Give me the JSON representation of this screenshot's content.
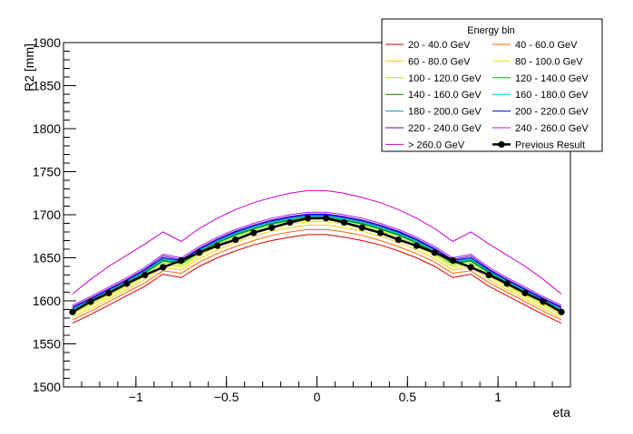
{
  "chart_data": {
    "type": "line",
    "title": "",
    "xlabel": "eta",
    "ylabel": "R2 [mm]",
    "xlim": [
      -1.4,
      1.4
    ],
    "ylim": [
      1500,
      1900
    ],
    "x_ticks": [
      -1,
      -0.5,
      0,
      0.5,
      1
    ],
    "x_tick_labels": [
      "−1",
      "−0.5",
      "0",
      "0.5",
      "1"
    ],
    "y_ticks": [
      1500,
      1550,
      1600,
      1650,
      1700,
      1750,
      1800,
      1850,
      1900
    ],
    "y_tick_labels": [
      "1500",
      "1550",
      "1600",
      "1650",
      "1700",
      "1750",
      "1800",
      "1850",
      "1900"
    ],
    "legend": {
      "title": "Energy bin",
      "position": "top-right"
    },
    "x": [
      -1.35,
      -1.25,
      -1.15,
      -1.05,
      -0.95,
      -0.85,
      -0.75,
      -0.65,
      -0.55,
      -0.45,
      -0.35,
      -0.25,
      -0.15,
      -0.05,
      0.05,
      0.15,
      0.25,
      0.35,
      0.45,
      0.55,
      0.65,
      0.75,
      0.85,
      0.95,
      1.05,
      1.15,
      1.25,
      1.35
    ],
    "series": [
      {
        "name": "20 - 40.0 GeV",
        "color": "#d40000",
        "values": [
          1574,
          1584,
          1595,
          1606,
          1617,
          1631,
          1627,
          1640,
          1650,
          1658,
          1665,
          1670,
          1674,
          1677,
          1677,
          1674,
          1670,
          1665,
          1658,
          1650,
          1640,
          1627,
          1631,
          1617,
          1606,
          1595,
          1584,
          1574
        ]
      },
      {
        "name": "40 - 60.0 GeV",
        "color": "#ff6600",
        "values": [
          1578,
          1588,
          1599,
          1610,
          1621,
          1635,
          1632,
          1645,
          1655,
          1663,
          1670,
          1676,
          1680,
          1683,
          1683,
          1680,
          1676,
          1670,
          1663,
          1655,
          1645,
          1632,
          1635,
          1621,
          1610,
          1599,
          1588,
          1578
        ]
      },
      {
        "name": "60 - 80.0 GeV",
        "color": "#ffcc00",
        "values": [
          1581,
          1591,
          1602,
          1613,
          1625,
          1639,
          1636,
          1649,
          1659,
          1668,
          1675,
          1681,
          1685,
          1688,
          1688,
          1685,
          1681,
          1675,
          1668,
          1659,
          1649,
          1636,
          1639,
          1625,
          1613,
          1602,
          1591,
          1581
        ]
      },
      {
        "name": "80 - 100.0 GeV",
        "color": "#e6e600",
        "values": [
          1584,
          1594,
          1605,
          1616,
          1628,
          1642,
          1639,
          1652,
          1663,
          1671,
          1679,
          1685,
          1689,
          1692,
          1692,
          1689,
          1685,
          1679,
          1671,
          1663,
          1652,
          1639,
          1642,
          1628,
          1616,
          1605,
          1594,
          1584
        ]
      },
      {
        "name": "100 - 120.0 GeV",
        "color": "#b3e600",
        "values": [
          1586,
          1596,
          1607,
          1618,
          1630,
          1644,
          1641,
          1654,
          1665,
          1674,
          1681,
          1687,
          1691,
          1694,
          1694,
          1691,
          1687,
          1681,
          1674,
          1665,
          1654,
          1641,
          1644,
          1630,
          1618,
          1607,
          1596,
          1586
        ]
      },
      {
        "name": "120 - 140.0 GeV",
        "color": "#00b300",
        "values": [
          1588,
          1598,
          1609,
          1620,
          1632,
          1646,
          1643,
          1656,
          1667,
          1676,
          1683,
          1689,
          1693,
          1696,
          1696,
          1693,
          1689,
          1683,
          1676,
          1667,
          1656,
          1643,
          1646,
          1632,
          1620,
          1609,
          1598,
          1588
        ]
      },
      {
        "name": "140 - 160.0 GeV",
        "color": "#008000",
        "values": [
          1589,
          1599,
          1610,
          1621,
          1633,
          1647,
          1644,
          1657,
          1668,
          1677,
          1684,
          1690,
          1694,
          1697,
          1697,
          1694,
          1690,
          1684,
          1677,
          1668,
          1657,
          1644,
          1647,
          1633,
          1621,
          1610,
          1599,
          1589
        ]
      },
      {
        "name": "160 - 180.0 GeV",
        "color": "#00cccc",
        "values": [
          1590,
          1600,
          1611,
          1622,
          1634,
          1648,
          1645,
          1658,
          1669,
          1678,
          1685,
          1691,
          1695,
          1698,
          1698,
          1695,
          1691,
          1685,
          1678,
          1669,
          1658,
          1645,
          1648,
          1634,
          1622,
          1611,
          1600,
          1590
        ]
      },
      {
        "name": "180 - 200.0 GeV",
        "color": "#0099cc",
        "values": [
          1591,
          1601,
          1612,
          1623,
          1635,
          1649,
          1646,
          1659,
          1670,
          1679,
          1686,
          1692,
          1696,
          1699,
          1699,
          1696,
          1692,
          1686,
          1679,
          1670,
          1659,
          1646,
          1649,
          1635,
          1623,
          1612,
          1601,
          1591
        ]
      },
      {
        "name": "200 - 220.0 GeV",
        "color": "#0000cc",
        "values": [
          1592,
          1602,
          1613,
          1624,
          1636,
          1650,
          1647,
          1660,
          1671,
          1680,
          1687,
          1693,
          1697,
          1700,
          1700,
          1697,
          1693,
          1687,
          1680,
          1671,
          1660,
          1647,
          1650,
          1636,
          1624,
          1613,
          1602,
          1592
        ]
      },
      {
        "name": "220 - 240.0 GeV",
        "color": "#6600cc",
        "values": [
          1593,
          1603,
          1614,
          1625,
          1637,
          1652,
          1648,
          1661,
          1672,
          1681,
          1688,
          1694,
          1698,
          1701,
          1701,
          1698,
          1694,
          1688,
          1681,
          1672,
          1661,
          1648,
          1652,
          1637,
          1625,
          1614,
          1603,
          1593
        ]
      },
      {
        "name": "240 - 260.0 GeV",
        "color": "#a020f0",
        "values": [
          1595,
          1605,
          1616,
          1627,
          1639,
          1654,
          1650,
          1663,
          1674,
          1683,
          1690,
          1696,
          1700,
          1703,
          1703,
          1700,
          1696,
          1690,
          1683,
          1674,
          1663,
          1650,
          1654,
          1639,
          1627,
          1616,
          1605,
          1595
        ]
      },
      {
        "name": "> 260.0 GeV",
        "color": "#cc00cc",
        "values": [
          1608,
          1625,
          1640,
          1653,
          1666,
          1680,
          1669,
          1684,
          1696,
          1706,
          1714,
          1720,
          1725,
          1728,
          1728,
          1725,
          1720,
          1714,
          1706,
          1696,
          1684,
          1669,
          1680,
          1666,
          1653,
          1640,
          1625,
          1608
        ]
      },
      {
        "name": "Previous Result",
        "color": "#000000",
        "values": [
          1587,
          1599,
          1609,
          1620,
          1630,
          1639,
          1647,
          1656,
          1664,
          1671,
          1679,
          1685,
          1691,
          1696,
          1696,
          1691,
          1685,
          1679,
          1671,
          1664,
          1656,
          1647,
          1639,
          1630,
          1620,
          1609,
          1599,
          1587
        ]
      }
    ]
  }
}
